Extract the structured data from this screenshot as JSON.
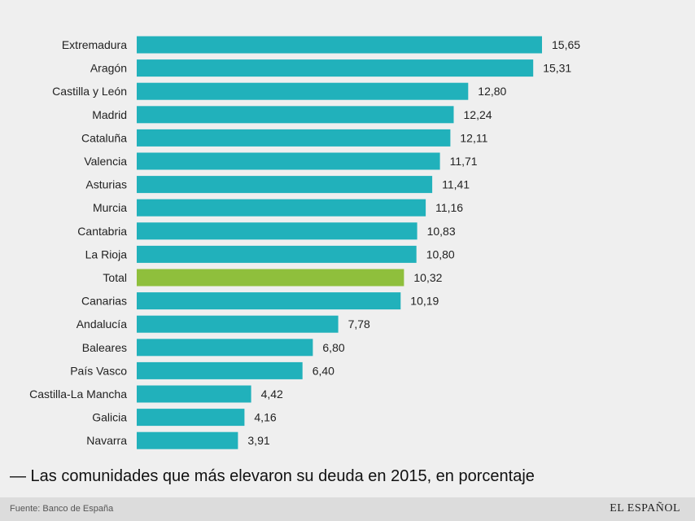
{
  "chart_data": {
    "type": "bar",
    "orientation": "horizontal",
    "title": "— Las comunidades que más elevaron su deuda en 2015, en porcentaje",
    "categories": [
      "Extremadura",
      "Aragón",
      "Castilla y León",
      "Madrid",
      "Cataluña",
      "Valencia",
      "Asturias",
      "Murcia",
      "Cantabria",
      "La Rioja",
      "Total",
      "Canarias",
      "Andalucía",
      "Baleares",
      "País Vasco",
      "Castilla-La Mancha",
      "Galicia",
      "Navarra"
    ],
    "values": [
      15.65,
      15.31,
      12.8,
      12.24,
      12.11,
      11.71,
      11.41,
      11.16,
      10.83,
      10.8,
      10.32,
      10.19,
      7.78,
      6.8,
      6.4,
      4.42,
      4.16,
      3.91
    ],
    "value_labels": [
      "15,65",
      "15,31",
      "12,80",
      "12,24",
      "12,11",
      "11,71",
      "11,41",
      "11,16",
      "10,83",
      "10,80",
      "10,32",
      "10,19",
      "7,78",
      "6,80",
      "6,40",
      "4,42",
      "4,16",
      "3,91"
    ],
    "xlim": [
      0,
      15.65
    ],
    "highlight_category": "Total",
    "colors": {
      "bar": "#21b1bb",
      "highlight": "#8fbf3c",
      "background": "#efefef"
    },
    "grid": false
  },
  "footer": {
    "source": "Fuente: Banco de España",
    "brand": "EL ESPAÑOL"
  }
}
